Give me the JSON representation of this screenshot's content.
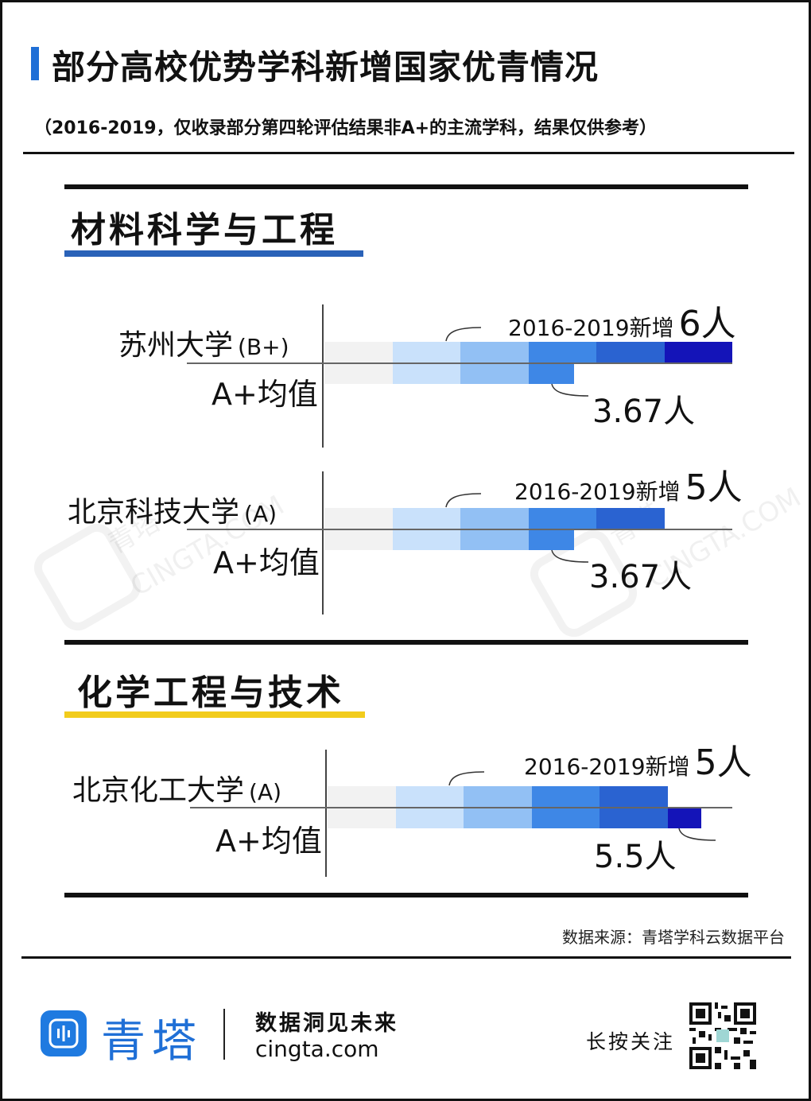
{
  "header": {
    "title": "部分高校优势学科新增国家优青情况",
    "subtitle": "（2016-2019，仅收录部分第四轮评估结果非A+的主流学科，结果仅供参考）"
  },
  "sections": [
    {
      "title": "材料科学与工程",
      "underline_color": "#2a62b8"
    },
    {
      "title": "化学工程与技术",
      "underline_color": "#f2cc1c"
    }
  ],
  "chart_data": {
    "type": "bar",
    "unit": "人",
    "colors": [
      "#f2f2f2",
      "#c9e1fb",
      "#92c0f4",
      "#3e87e6",
      "#2a63d1",
      "#1414b8"
    ],
    "rows": [
      {
        "section": "材料科学与工程",
        "university": "苏州大学",
        "grade": "(B+)",
        "new_label": "2016-2019新增",
        "new_value": 6,
        "avg_label": "A+均值",
        "avg_value": 3.67,
        "new_text": "6人",
        "avg_text": "3.67人"
      },
      {
        "section": "材料科学与工程",
        "university": "北京科技大学",
        "grade": "(A)",
        "new_label": "2016-2019新增",
        "new_value": 5,
        "avg_label": "A+均值",
        "avg_value": 3.67,
        "new_text": "5人",
        "avg_text": "3.67人"
      },
      {
        "section": "化学工程与技术",
        "university": "北京化工大学",
        "grade": "(A)",
        "new_label": "2016-2019新增",
        "new_value": 5,
        "avg_label": "A+均值",
        "avg_value": 5.5,
        "new_text": "5人",
        "avg_text": "5.5人"
      }
    ]
  },
  "footer": {
    "source": "数据来源：青塔学科云数据平台",
    "brand": "青塔",
    "slogan": "数据洞见未来",
    "url": "cingta.com",
    "follow": "长按关注"
  },
  "watermarks": [
    "青塔",
    "CINGTA.COM"
  ]
}
